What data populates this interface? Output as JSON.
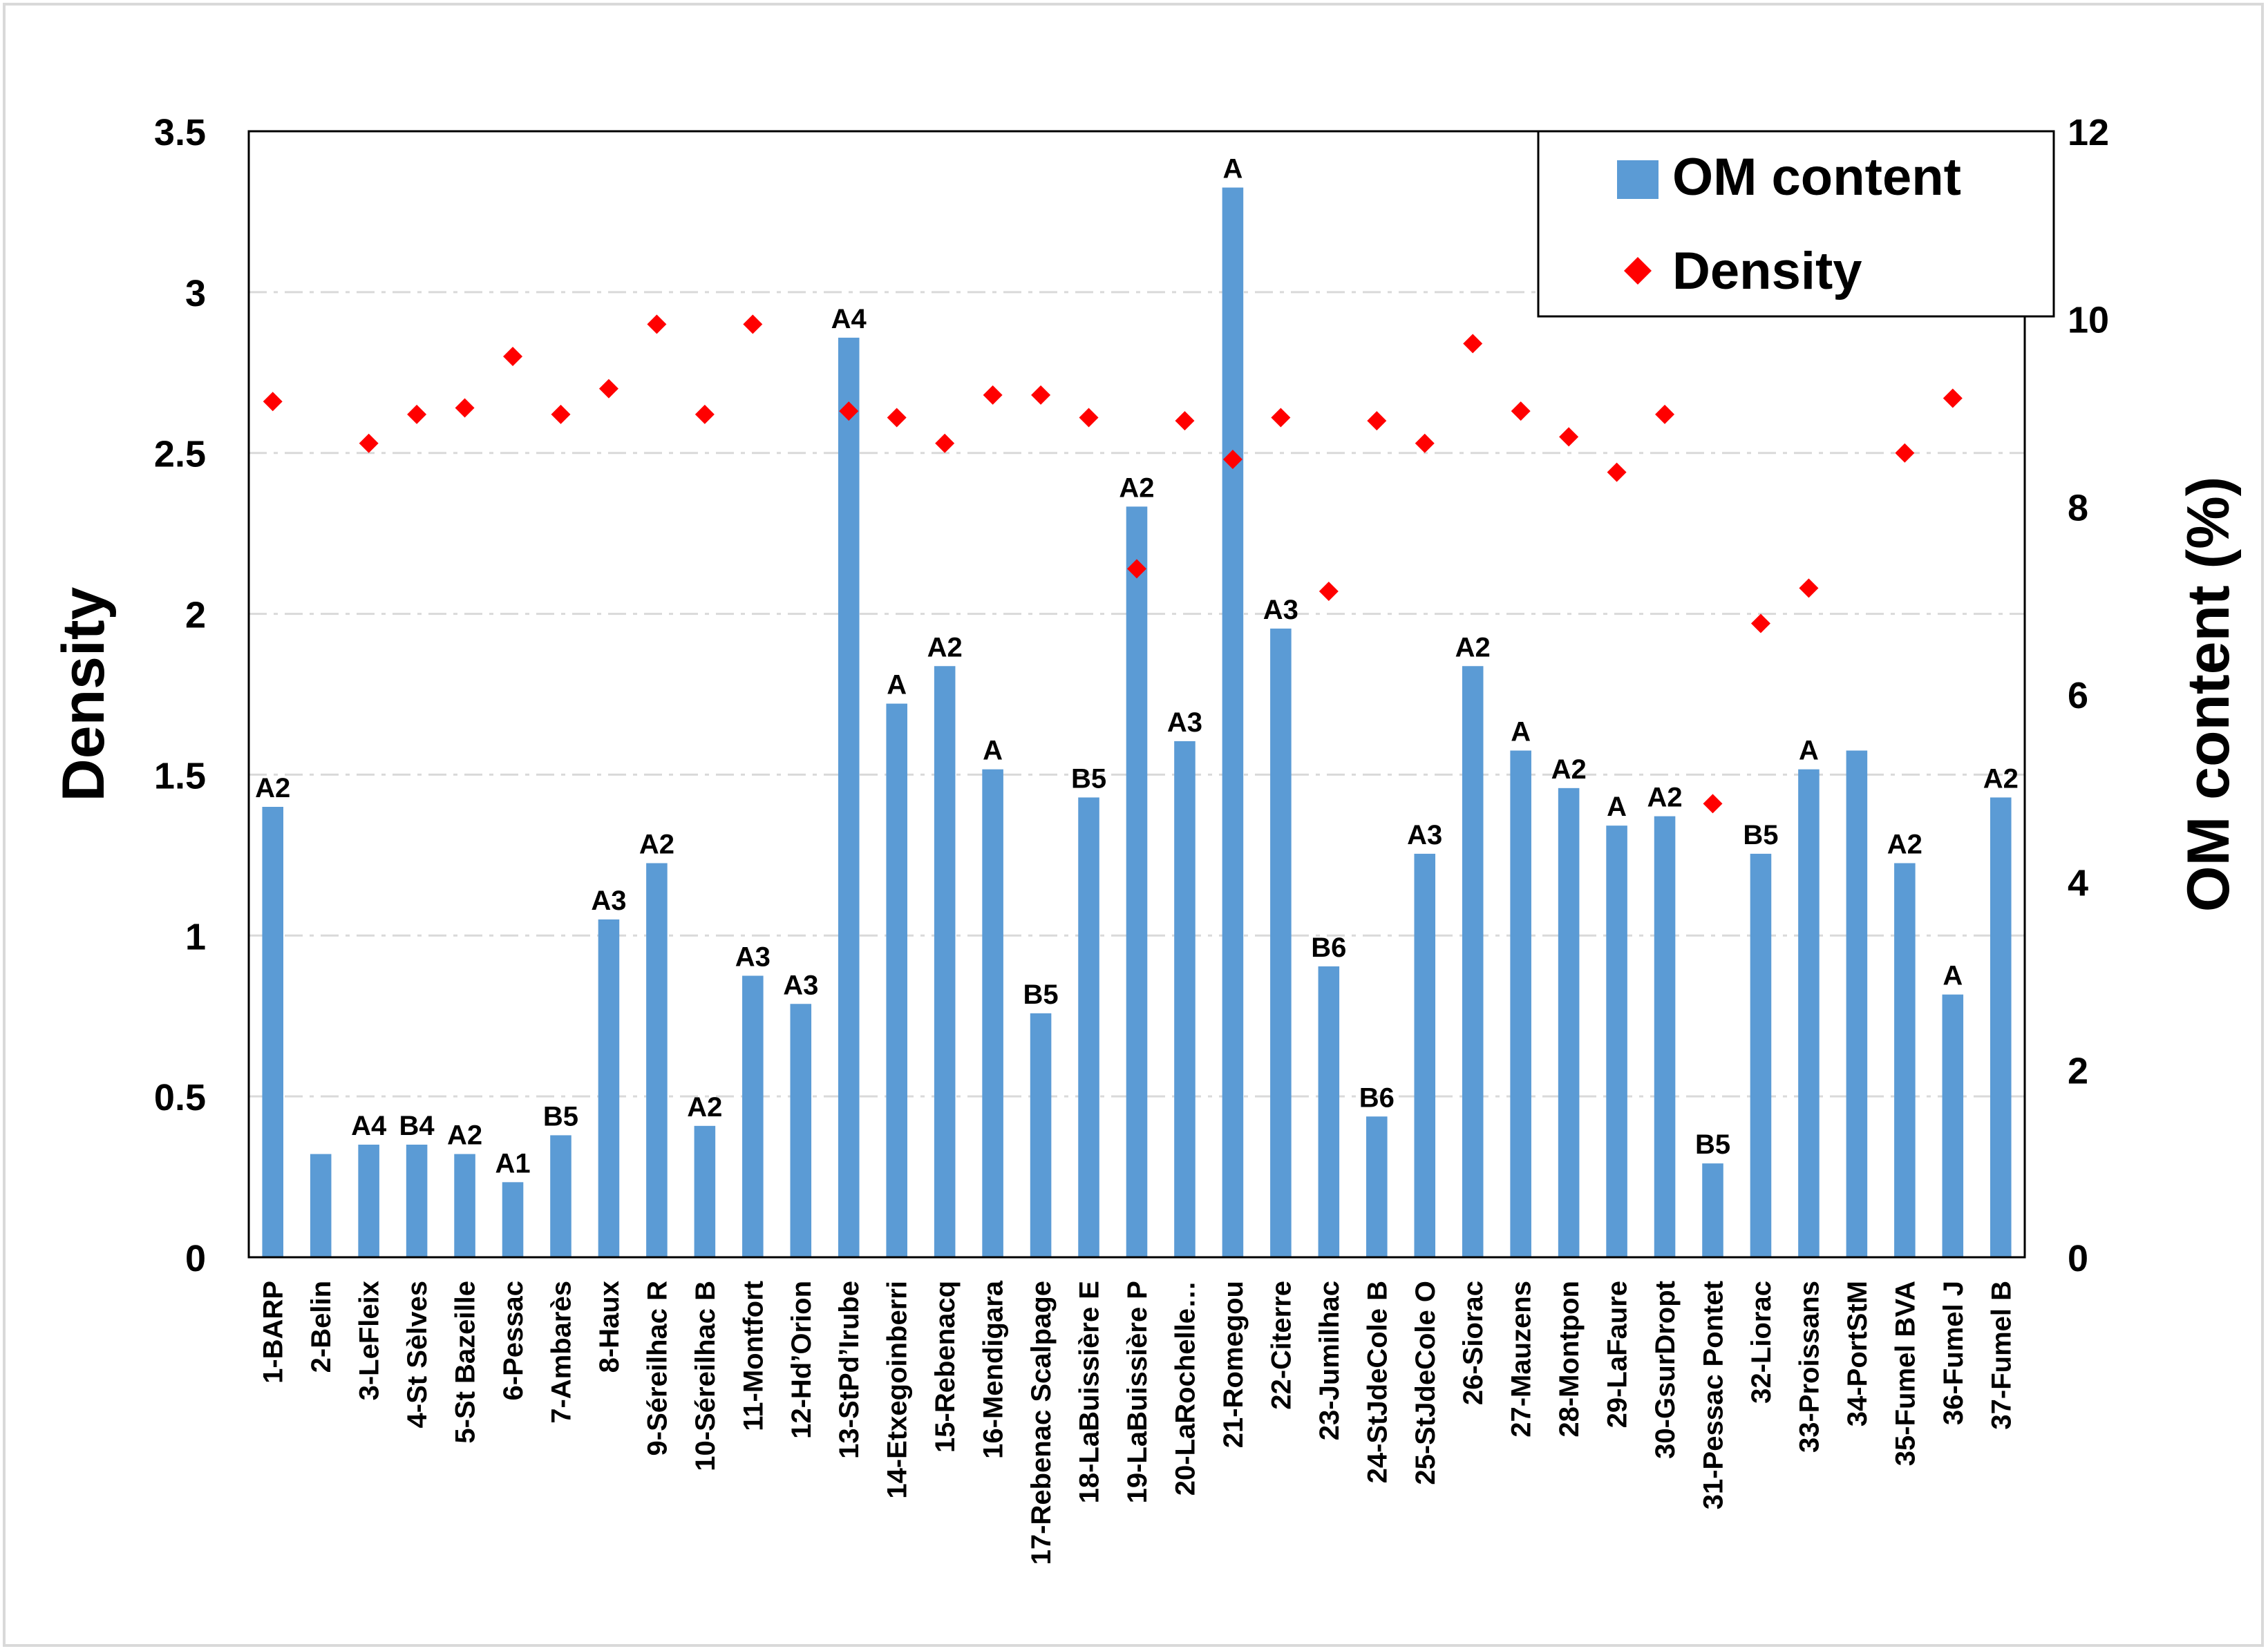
{
  "chart_data": {
    "type": "bar",
    "title": "",
    "categories": [
      "1-BARP",
      "2-Belin",
      "3-LeFleix",
      "4-St Sèlves",
      "5-St Bazeille",
      "6-Pessac",
      "7-Ambarès",
      "8-Haux",
      "9-Séreilhac R",
      "10-Séreilhac B",
      "11-Montfort",
      "12-Hd’Orion",
      "13-StPd’Irube",
      "14-Etxegoinberri",
      "15-Rebenacq",
      "16-Mendigara",
      "17-Rebenac Scalpage",
      "18-LaBuissière E",
      "19-LaBuissière P",
      "20-LaRochelle…",
      "21-Romegou",
      "22-Citerre",
      "23-Jumilhac",
      "24-StJdeCole B",
      "25-StJdeCole O",
      "26-Siorac",
      "27-Mauzens",
      "28-Montpon",
      "29-LaFaure",
      "30-GsurDropt",
      "31-Pessac Pontet",
      "32-Liorac",
      "33-Proissans",
      "34-PortStM",
      "35-Fumel BVA",
      "36-Fumel J",
      "37-Fumel B"
    ],
    "series": [
      {
        "name": "OM content",
        "type": "bar",
        "axis": "right",
        "color": "#5b9bd5",
        "values": [
          4.8,
          1.1,
          1.2,
          1.2,
          1.1,
          0.8,
          1.3,
          3.6,
          4.2,
          1.4,
          3.0,
          2.7,
          9.8,
          5.9,
          6.3,
          5.2,
          2.6,
          4.9,
          8.0,
          5.5,
          11.4,
          6.7,
          3.1,
          1.5,
          4.3,
          6.3,
          5.4,
          5.0,
          4.6,
          4.7,
          1.0,
          4.3,
          5.2,
          5.4,
          4.2,
          2.8,
          4.9
        ],
        "labels": [
          "A2",
          "",
          "A4",
          "B4",
          "A2",
          "A1",
          "B5",
          "A3",
          "A2",
          "A2",
          "A3",
          "A3",
          "A4",
          "A",
          "A2",
          "A",
          "B5",
          "B5",
          "A2",
          "A3",
          "A",
          "A3",
          "B6",
          "B6",
          "A3",
          "A2",
          "A",
          "A2",
          "A",
          "A2",
          "B5",
          "B5",
          "A",
          "",
          "A2",
          "A",
          "A2"
        ]
      },
      {
        "name": "Density",
        "type": "scatter",
        "axis": "left",
        "color": "#ff0000",
        "marker": "diamond",
        "values": [
          2.66,
          null,
          2.53,
          2.62,
          2.64,
          2.8,
          2.62,
          2.7,
          2.9,
          2.62,
          2.9,
          null,
          2.63,
          2.61,
          2.53,
          2.68,
          2.68,
          2.61,
          2.14,
          2.6,
          2.48,
          2.61,
          2.07,
          2.6,
          2.53,
          2.84,
          2.63,
          2.55,
          2.44,
          2.62,
          1.41,
          1.97,
          2.08,
          null,
          2.5,
          2.67,
          null
        ]
      }
    ],
    "ylabel_left": "Density",
    "ylabel_right": "OM content (%)",
    "ylim_left": [
      0,
      3.5
    ],
    "yticks_left": [
      "0",
      "0.5",
      "1",
      "1.5",
      "2",
      "2.5",
      "3",
      "3.5"
    ],
    "ylim_right": [
      0,
      12
    ],
    "yticks_right": [
      "0",
      "2",
      "4",
      "6",
      "8",
      "10",
      "12"
    ],
    "grid": "horizontal dashed",
    "legend": {
      "position": "top-right",
      "entries": [
        "OM content",
        "Density"
      ]
    }
  }
}
